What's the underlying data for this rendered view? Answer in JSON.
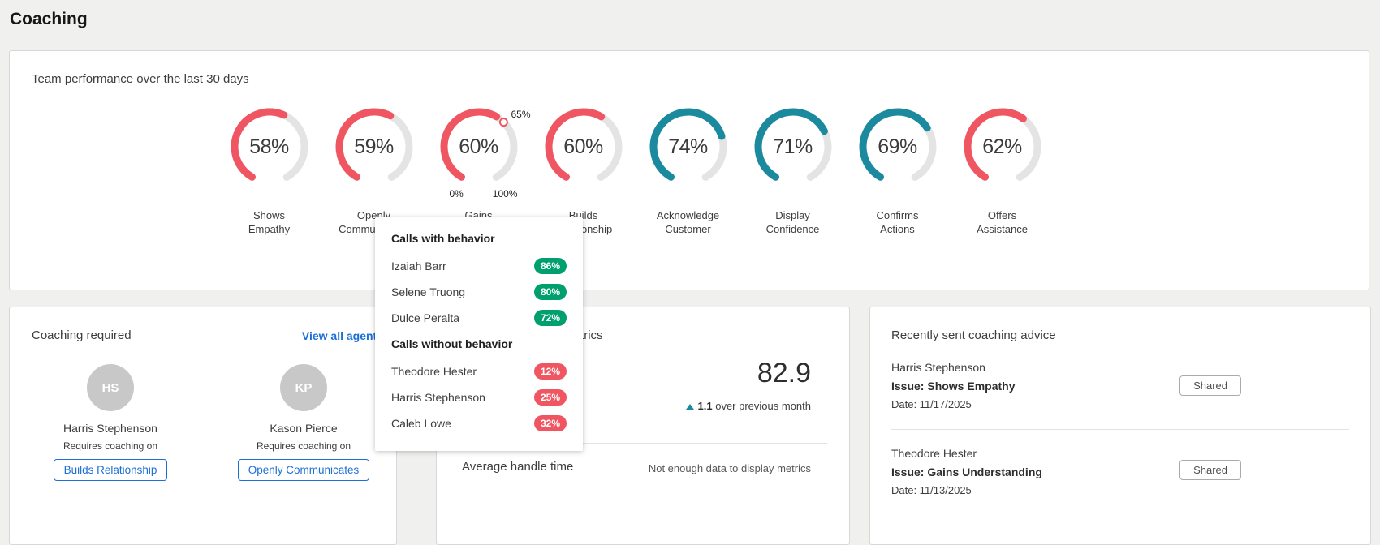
{
  "colors": {
    "red": "#ef5662",
    "teal": "#1b8a9e",
    "green": "#00a06e",
    "track": "#e4e4e4",
    "blue": "#1c6fd4"
  },
  "page": {
    "title": "Coaching"
  },
  "team_performance": {
    "title": "Team performance over the last 30 days",
    "threshold": 65,
    "scale": {
      "min": "0%",
      "max": "100%",
      "threshold": "65%"
    },
    "gauges": [
      {
        "display": "58%",
        "value": 58,
        "label": "Shows Empathy",
        "color": "red",
        "show_scale": false
      },
      {
        "display": "59%",
        "value": 59,
        "label": "Openly Communicates",
        "color": "red",
        "show_scale": false
      },
      {
        "display": "60%",
        "value": 60,
        "label": "Gains Understanding",
        "color": "red",
        "show_scale": true
      },
      {
        "display": "60%",
        "value": 60,
        "label": "Builds Relationship",
        "color": "red",
        "show_scale": false
      },
      {
        "display": "74%",
        "value": 74,
        "label": "Acknowledge Customer",
        "color": "teal",
        "show_scale": false
      },
      {
        "display": "71%",
        "value": 71,
        "label": "Display Confidence",
        "color": "teal",
        "show_scale": false
      },
      {
        "display": "69%",
        "value": 69,
        "label": "Confirms Actions",
        "color": "teal",
        "show_scale": false
      },
      {
        "display": "62%",
        "value": 62,
        "label": "Offers Assistance",
        "color": "red",
        "show_scale": false
      }
    ]
  },
  "tooltip": {
    "with_header": "Calls with behavior",
    "without_header": "Calls without behavior",
    "with": [
      {
        "name": "Izaiah Barr",
        "value": "86%"
      },
      {
        "name": "Selene Truong",
        "value": "80%"
      },
      {
        "name": "Dulce Peralta",
        "value": "72%"
      }
    ],
    "without": [
      {
        "name": "Theodore Hester",
        "value": "12%"
      },
      {
        "name": "Harris Stephenson",
        "value": "25%"
      },
      {
        "name": "Caleb Lowe",
        "value": "32%"
      }
    ]
  },
  "coaching_required": {
    "title": "Coaching required",
    "link": "View all agents",
    "agents": [
      {
        "initials": "HS",
        "name": "Harris Stephenson",
        "sub": "Requires coaching on",
        "behavior": "Builds Relationship"
      },
      {
        "initials": "KP",
        "name": "Kason Pierce",
        "sub": "Requires coaching on",
        "behavior": "Openly Communicates"
      }
    ]
  },
  "metrics": {
    "title": "Team performance metrics",
    "score": "82.9",
    "change": "1.1",
    "change_suffix": "over previous month",
    "row_label": "Average handle time",
    "row_value": "Not enough data to display metrics"
  },
  "advice": {
    "title": "Recently sent coaching advice",
    "entries": [
      {
        "name": "Harris Stephenson",
        "issue": "Issue: Shows Empathy",
        "date": "Date: 11/17/2025",
        "action": "Shared"
      },
      {
        "name": "Theodore Hester",
        "issue": "Issue: Gains Understanding",
        "date": "Date: 11/13/2025",
        "action": "Shared"
      }
    ]
  }
}
